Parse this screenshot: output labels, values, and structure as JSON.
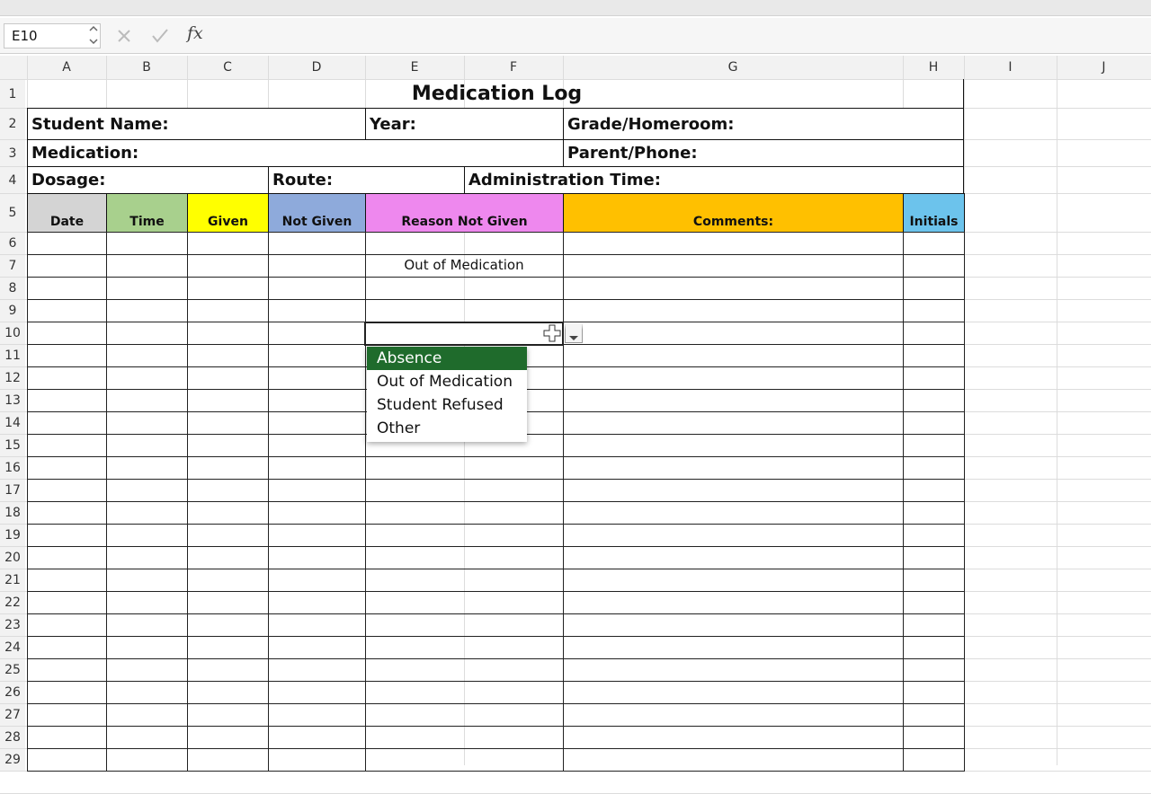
{
  "toolbar": {
    "name_box": "E10",
    "function_icon": "fx"
  },
  "column_headers": [
    "A",
    "B",
    "C",
    "D",
    "E",
    "F",
    "G",
    "H",
    "I",
    "J"
  ],
  "row_headers": [
    "1",
    "2",
    "3",
    "4",
    "5",
    "6",
    "7",
    "8",
    "9",
    "10",
    "11",
    "12",
    "13",
    "14",
    "15",
    "16",
    "17",
    "18",
    "19",
    "20",
    "21",
    "22",
    "23",
    "24",
    "25",
    "26",
    "27",
    "28",
    "29"
  ],
  "sheet": {
    "title": "Medication Log",
    "student_name": "Student Name:",
    "year": "Year:",
    "grade_homeroom": "Grade/Homeroom:",
    "medication": "Medication:",
    "parent_phone": "Parent/Phone:",
    "dosage": "Dosage:",
    "route": "Route:",
    "administration_time": "Administration Time:",
    "table_headers": [
      "Date",
      "Time",
      "Given",
      "Not Given",
      "Reason Not Given",
      "Comments:",
      "Initials"
    ],
    "e7": "Out of Medication"
  },
  "dropdown": {
    "options": [
      "Absence",
      "Out of Medication",
      "Student Refused",
      "Other"
    ]
  }
}
